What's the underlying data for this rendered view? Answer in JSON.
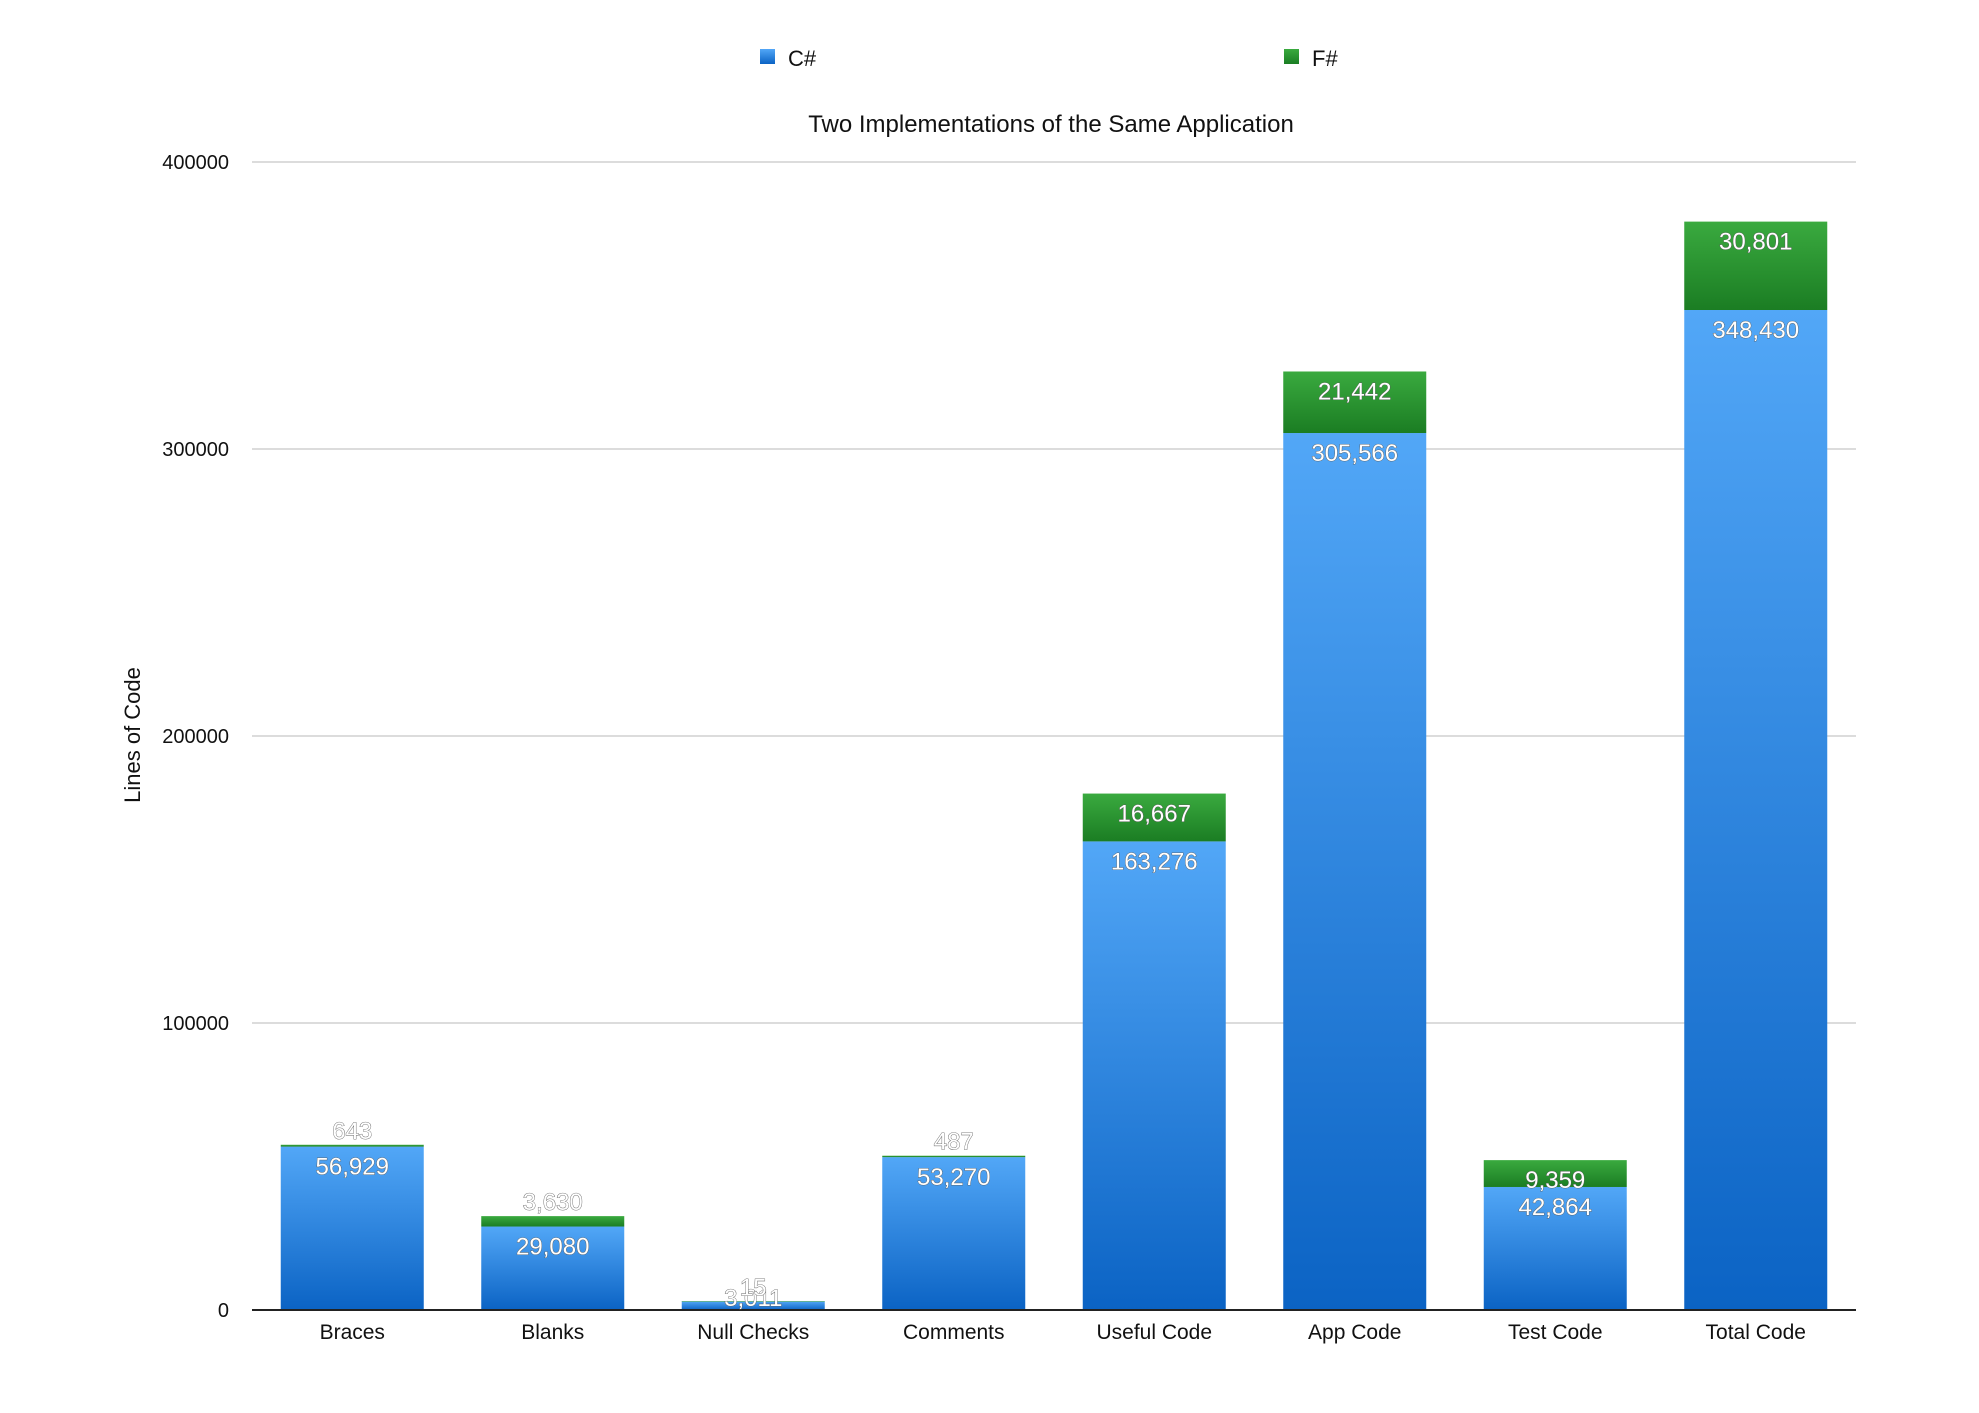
{
  "legend": {
    "items": [
      {
        "label": "C#",
        "color": "#2f8ae6"
      },
      {
        "label": "F#",
        "color": "#2fa33a"
      }
    ]
  },
  "chart_data": {
    "type": "bar",
    "stacked": true,
    "title": "Two Implementations of the Same Application",
    "xlabel": "",
    "ylabel": "Lines of Code",
    "ylim": [
      0,
      400000
    ],
    "yticks": [
      "0",
      "100000",
      "200000",
      "300000",
      "400000"
    ],
    "yticks_values": [
      0,
      100000,
      200000,
      300000,
      400000
    ],
    "grid": true,
    "legend_position": "top",
    "categories": [
      "Braces",
      "Blanks",
      "Null Checks",
      "Comments",
      "Useful Code",
      "App Code",
      "Test Code",
      "Total Code"
    ],
    "series": [
      {
        "name": "C#",
        "color": "#2f8ae6",
        "values": [
          56929,
          29080,
          3011,
          53270,
          163276,
          305566,
          42864,
          348430
        ],
        "labels": [
          "56,929",
          "29,080",
          "3,011",
          "53,270",
          "163,276",
          "305,566",
          "42,864",
          "348,430"
        ]
      },
      {
        "name": "F#",
        "color": "#2fa33a",
        "values": [
          643,
          3630,
          15,
          487,
          16667,
          21442,
          9359,
          30801
        ],
        "labels": [
          "643",
          "3,630",
          "15",
          "487",
          "16,667",
          "21,442",
          "9,359",
          "30,801"
        ]
      }
    ]
  }
}
